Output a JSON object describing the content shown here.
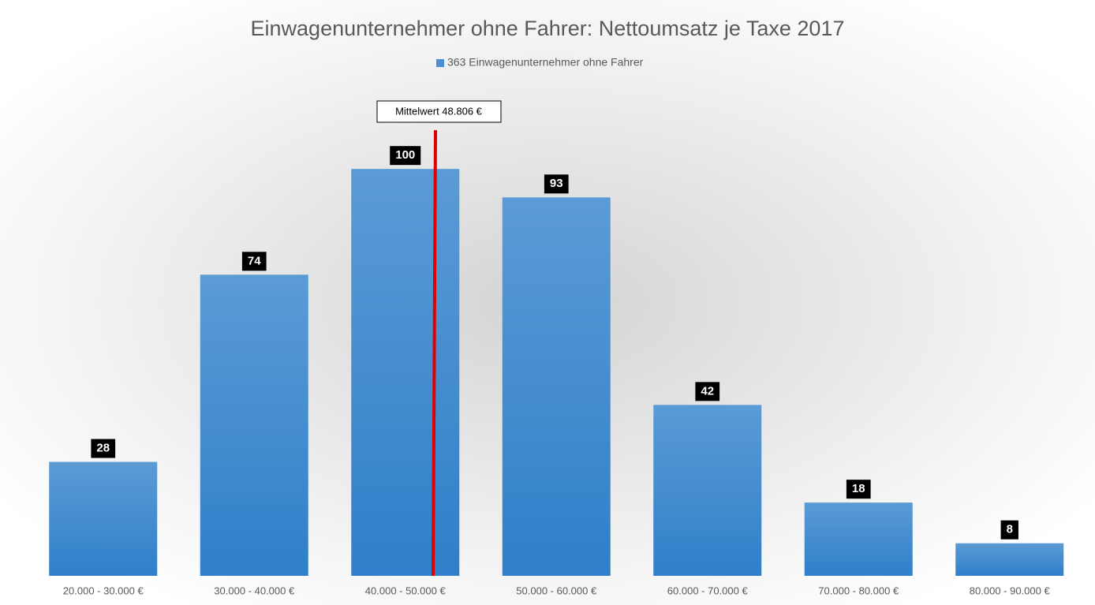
{
  "chart_data": {
    "type": "bar",
    "title": "Einwagenunternehmer ohne Fahrer: Nettoumsatz je Taxe 2017",
    "categories": [
      "20.000 - 30.000 €",
      "30.000 - 40.000 €",
      "40.000 - 50.000 €",
      "50.000 - 60.000 €",
      "60.000 - 70.000 €",
      "70.000 - 80.000 €",
      "80.000 - 90.000 €"
    ],
    "series": [
      {
        "name": "363 Einwagenunternehmer ohne Fahrer",
        "color": "#4a8fd2",
        "values": [
          28,
          74,
          100,
          93,
          42,
          18,
          8
        ]
      }
    ],
    "annotations": [
      {
        "text": "Mittelwert 48.806 €"
      }
    ],
    "ylim": [
      0,
      120
    ],
    "legend": "top"
  }
}
